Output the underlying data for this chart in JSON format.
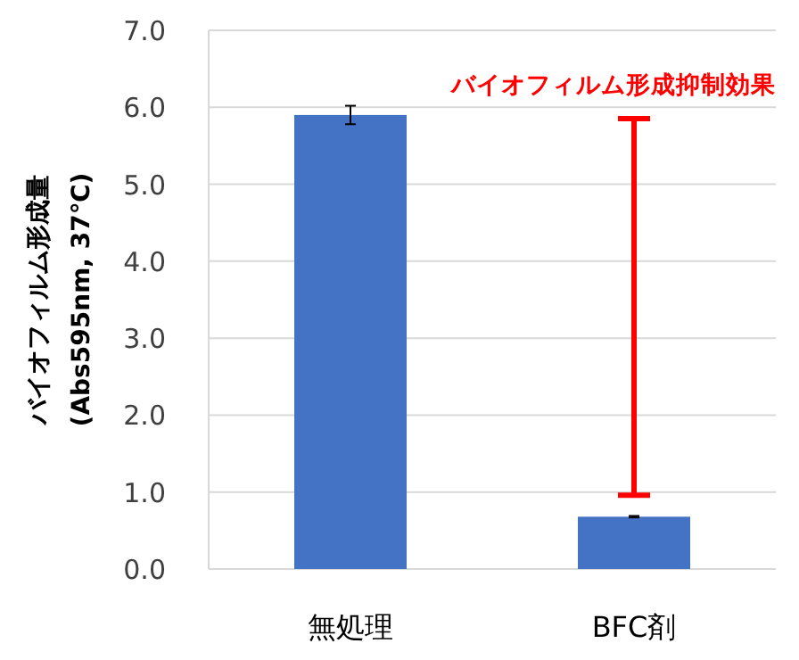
{
  "chart_data": {
    "type": "bar",
    "categories": [
      "無処理",
      "BFC剤"
    ],
    "values": [
      5.9,
      0.68
    ],
    "errors": [
      0.12,
      0.01
    ],
    "color": "#4472c4",
    "ylabel": "バイオフィルム形成量 (Abs595nm, 37℃)",
    "ylim": [
      0,
      7
    ],
    "yticks": [
      {
        "value": 0,
        "label": "0.0"
      },
      {
        "value": 1,
        "label": "1.0"
      },
      {
        "value": 2,
        "label": "2.0"
      },
      {
        "value": 3,
        "label": "3.0"
      },
      {
        "value": 4,
        "label": "4.0"
      },
      {
        "value": 5,
        "label": "5.0"
      },
      {
        "value": 6,
        "label": "6.0"
      },
      {
        "value": 7,
        "label": "7.0"
      }
    ],
    "grid": "y",
    "annotations": [
      "バイオフィルム形成抑制効果"
    ]
  }
}
